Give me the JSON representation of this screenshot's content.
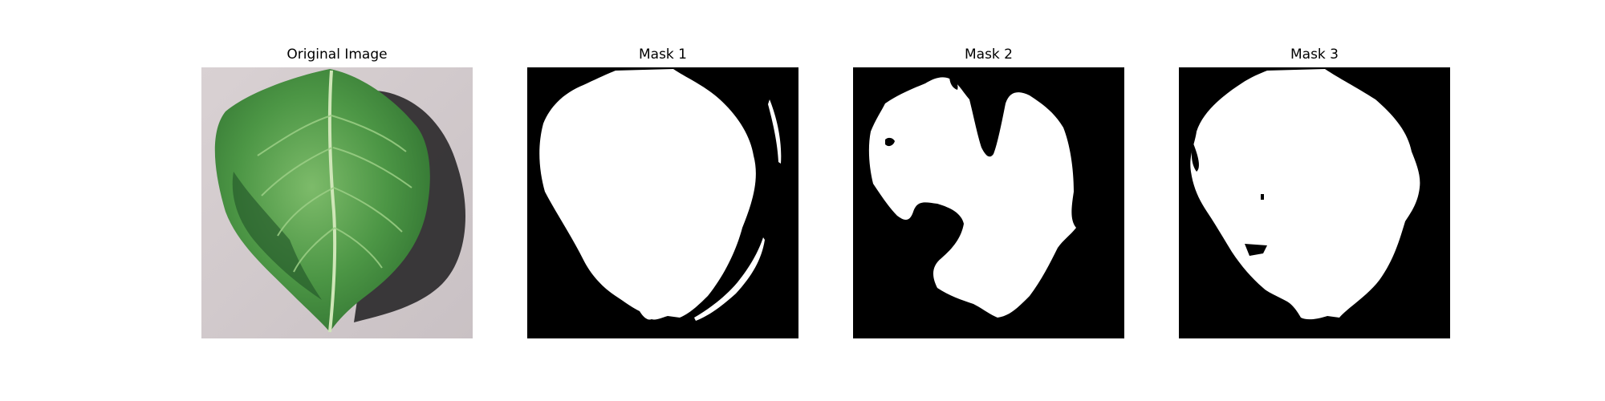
{
  "figure": {
    "panels": [
      {
        "title": "Original Image"
      },
      {
        "title": "Mask 1"
      },
      {
        "title": "Mask 2"
      },
      {
        "title": "Mask 3"
      }
    ]
  },
  "colors": {
    "mask_foreground": "#ffffff",
    "mask_background": "#000000",
    "photo_background": "#d8d0d2",
    "leaf_green": "#3f8a3a"
  }
}
